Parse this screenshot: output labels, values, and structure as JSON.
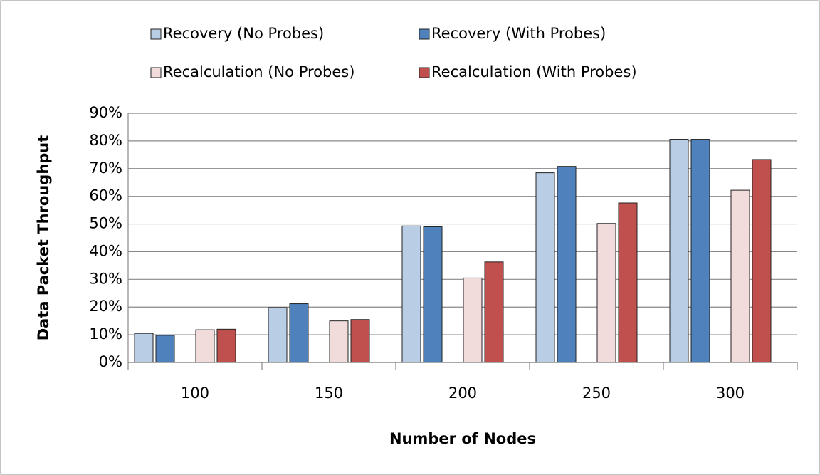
{
  "chart_data": {
    "type": "bar",
    "categories": [
      "100",
      "150",
      "200",
      "250",
      "300"
    ],
    "series": [
      {
        "name": "Recovery (No Probes)",
        "color": "#b9cde5",
        "values": [
          10.5,
          19.8,
          49.3,
          68.5,
          80.6
        ]
      },
      {
        "name": "Recovery (With Probes)",
        "color": "#4f81bd",
        "values": [
          9.8,
          21.2,
          49.0,
          70.8,
          80.6
        ]
      },
      {
        "name": "Recalculation (No Probes)",
        "color": "#f2dcdb",
        "values": [
          11.8,
          15.0,
          30.5,
          50.2,
          62.2
        ]
      },
      {
        "name": "Recalculation (With Probes)",
        "color": "#c0504d",
        "values": [
          12.0,
          15.5,
          36.3,
          57.6,
          73.3
        ]
      }
    ],
    "xlabel": "Number of Nodes",
    "ylabel": "Data Packet Throughput",
    "ylim": [
      0,
      90
    ],
    "yticks": [
      {
        "value": 0,
        "label": "0%"
      },
      {
        "value": 10,
        "label": "10%"
      },
      {
        "value": 20,
        "label": "20%"
      },
      {
        "value": 30,
        "label": "30%"
      },
      {
        "value": 40,
        "label": "40%"
      },
      {
        "value": 50,
        "label": "50%"
      },
      {
        "value": 60,
        "label": "60%"
      },
      {
        "value": 70,
        "label": "70%"
      },
      {
        "value": 80,
        "label": "80%"
      },
      {
        "value": 90,
        "label": "90%"
      }
    ],
    "grid": true,
    "legend": "top"
  }
}
